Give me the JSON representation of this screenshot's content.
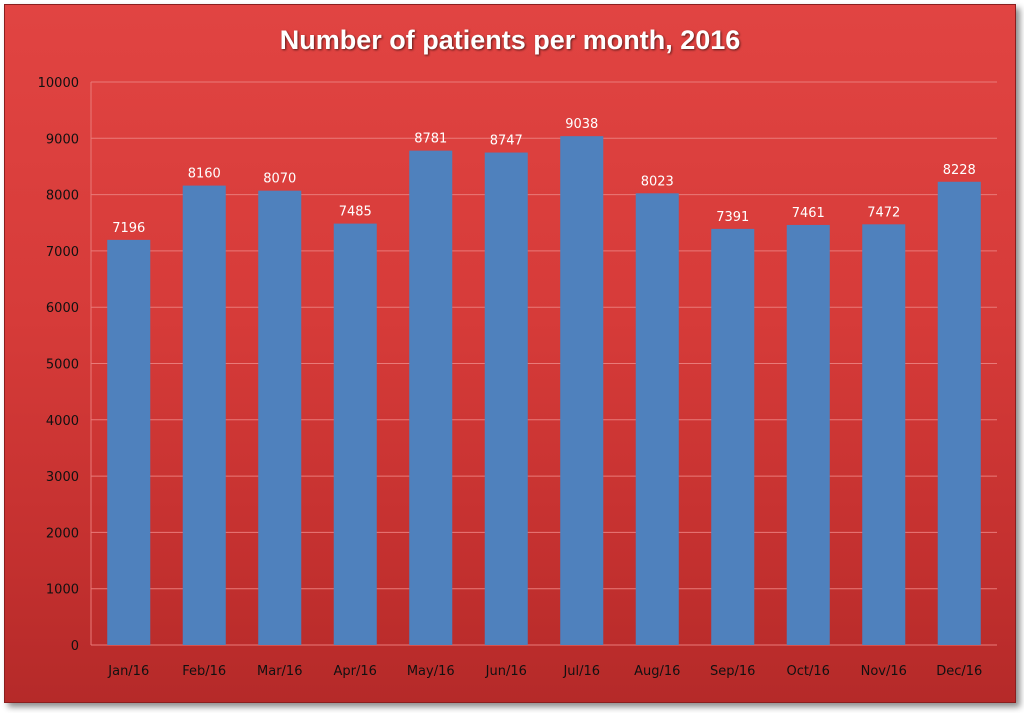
{
  "chart_data": {
    "type": "bar",
    "title": "Number of patients per month, 2016",
    "xlabel": "",
    "ylabel": "",
    "categories": [
      "Jan/16",
      "Feb/16",
      "Mar/16",
      "Apr/16",
      "May/16",
      "Jun/16",
      "Jul/16",
      "Aug/16",
      "Sep/16",
      "Oct/16",
      "Nov/16",
      "Dec/16"
    ],
    "values": [
      7196,
      8160,
      8070,
      7485,
      8781,
      8747,
      9038,
      8023,
      7391,
      7461,
      7472,
      8228
    ],
    "ylim": [
      0,
      10000
    ],
    "yticks": [
      "0",
      "1000",
      "2000",
      "3000",
      "4000",
      "5000",
      "6000",
      "7000",
      "8000",
      "9000",
      "10000"
    ],
    "grid": true,
    "legend": "none",
    "data_labels": true,
    "colors": {
      "bar": "#4f81bd",
      "background": "#d63b39",
      "grid": "#e97a78",
      "title": "#ffffff",
      "data_label": "#ffffff",
      "tick_label": "#111111"
    }
  }
}
